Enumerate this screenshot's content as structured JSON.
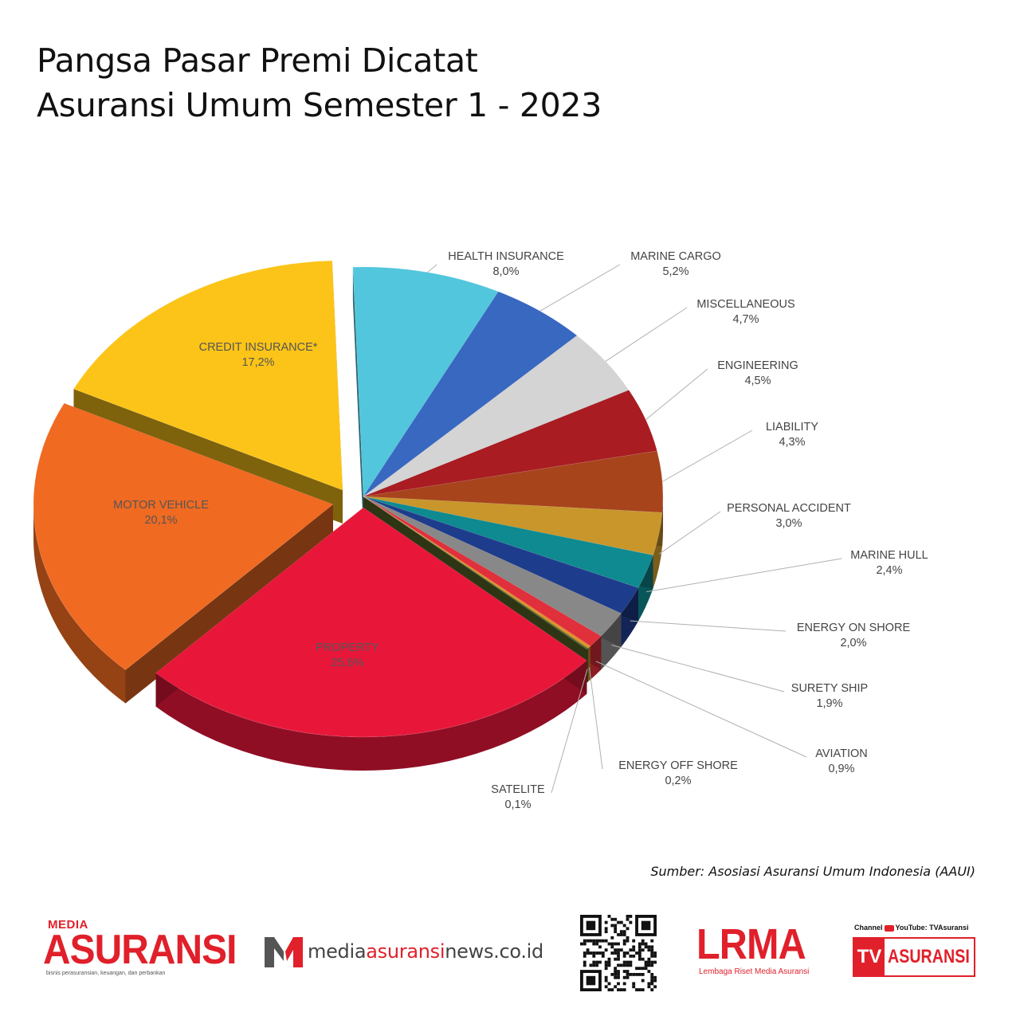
{
  "title": {
    "line1": "Pangsa Pasar Premi Dicatat",
    "line2": "Asuransi Umum Semester 1 - 2023"
  },
  "chart_data": {
    "type": "pie",
    "title": "Pangsa Pasar Premi Dicatat Asuransi Umum Semester 1 - 2023",
    "unit": "%",
    "slices": [
      {
        "label": "HEALTH INSURANCE",
        "value": 8.0,
        "display": "8,0%",
        "color": "#52c6dc"
      },
      {
        "label": "MARINE CARGO",
        "value": 5.2,
        "display": "5,2%",
        "color": "#3868c0"
      },
      {
        "label": "MISCELLANEOUS",
        "value": 4.7,
        "display": "4,7%",
        "color": "#d4d4d4"
      },
      {
        "label": "ENGINEERING",
        "value": 4.5,
        "display": "4,5%",
        "color": "#a81c22"
      },
      {
        "label": "LIABILITY",
        "value": 4.3,
        "display": "4,3%",
        "color": "#a8441c"
      },
      {
        "label": "PERSONAL ACCIDENT",
        "value": 3.0,
        "display": "3,0%",
        "color": "#c8962a"
      },
      {
        "label": "MARINE HULL",
        "value": 2.4,
        "display": "2,4%",
        "color": "#0e8a90"
      },
      {
        "label": "ENERGY ON SHORE",
        "value": 2.0,
        "display": "2,0%",
        "color": "#1e3c8c"
      },
      {
        "label": "SURETY SHIP",
        "value": 1.9,
        "display": "1,9%",
        "color": "#888888"
      },
      {
        "label": "AVIATION",
        "value": 0.9,
        "display": "0,9%",
        "color": "#e0303c"
      },
      {
        "label": "ENERGY OFF SHORE",
        "value": 0.2,
        "display": "0,2%",
        "color": "#e0902a"
      },
      {
        "label": "SATELITE",
        "value": 0.1,
        "display": "0,1%",
        "color": "#5a6a2a"
      },
      {
        "label": "PROPERTY",
        "value": 25.6,
        "display": "25,6%",
        "color": "#e8173a"
      },
      {
        "label": "MOTOR VEHICLE",
        "value": 20.1,
        "display": "20,1%",
        "color": "#f06a22"
      },
      {
        "label": "CREDIT INSURANCE*",
        "value": 17.2,
        "display": "17,2%",
        "color": "#fcc418"
      }
    ]
  },
  "source": "Sumber: Asosiasi Asuransi Umum Indonesia (AAUI)",
  "logos": {
    "media_asuransi_small": "MEDIA",
    "media_asuransi_big": "ASURANSI",
    "media_asuransi_tagline": "bisnis perasuransian, keuangan, dan perbankan",
    "news_prefix": "media",
    "news_brand": "asuransi",
    "news_suffix": "news.co.id",
    "lrma": "LRMA",
    "lrma_sub": "Lembaga Riset Media Asuransi",
    "tv_channel_prefix": "Channel",
    "tv_channel_suffix": "YouTube: TVAsuransi",
    "tv_mark": "TV",
    "tv_word": "ASURANSI"
  }
}
